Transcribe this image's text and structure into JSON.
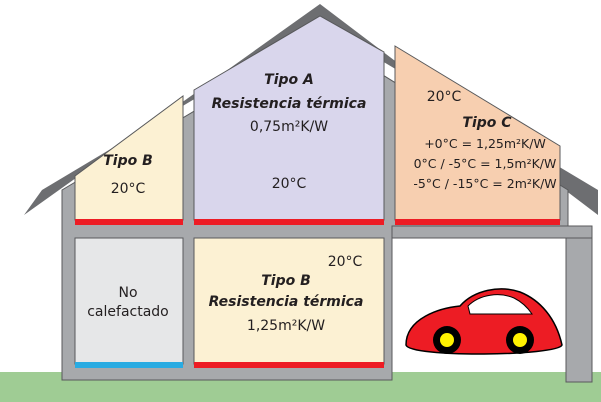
{
  "rooms": {
    "top_left": {
      "title": "Tipo B",
      "temp": "20°C"
    },
    "top_middle": {
      "title": "Tipo A",
      "subtitle": "Resistencia térmica",
      "value": "0,75m²K/W",
      "temp": "20°C"
    },
    "top_right": {
      "temp": "20°C",
      "title": "Tipo C",
      "lines": [
        "+0°C = 1,25m²K/W",
        "0°C / -5°C = 1,5m²K/W",
        "-5°C / -15°C = 2m²K/W"
      ]
    },
    "bottom_left": {
      "lines": [
        "No",
        "calefactado"
      ]
    },
    "bottom_middle": {
      "temp": "20°C",
      "title": "Tipo B",
      "subtitle": "Resistencia térmica",
      "value": "1,25m²K/W"
    }
  },
  "colors": {
    "roof": "#6d6e71",
    "wall": "#a7a9ac",
    "wall_outline": "#58595b",
    "room_b_fill": "#fcf1d3",
    "room_a_fill": "#d9d6ec",
    "room_c_fill": "#f7cfb0",
    "unheated_fill": "#e6e7e8",
    "heated_floor": "#ed1c24",
    "unheated_floor": "#29abe2",
    "ground": "#9fcc94",
    "car_body": "#ed1c24",
    "car_wheel": "#000000",
    "car_hub": "#fff200"
  }
}
